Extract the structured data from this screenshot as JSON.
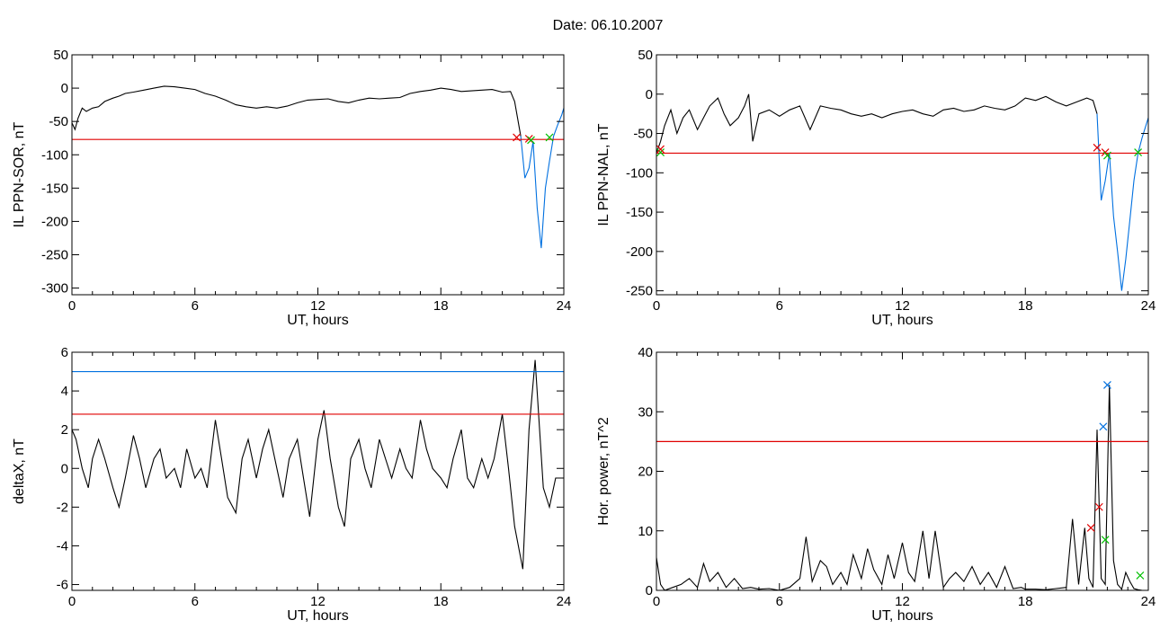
{
  "figure": {
    "title": "Date:  06.10.2007",
    "colors": {
      "line": "#000000",
      "red": "#e00000",
      "blue": "#0070e0",
      "green": "#00c000",
      "axis": "#000000"
    }
  },
  "chart_data": [
    {
      "type": "line",
      "xlabel": "UT, hours",
      "ylabel": "IL PPN-SOR, nT",
      "xlim": [
        0,
        24
      ],
      "ylim": [
        -310,
        50
      ],
      "xticks": [
        0,
        6,
        12,
        18,
        24
      ],
      "yticks": [
        50,
        0,
        -50,
        -100,
        -150,
        -200,
        -250,
        -300
      ],
      "threshold_lines": [
        {
          "color": "#e00000",
          "y": -77
        }
      ],
      "series": [
        {
          "color": "#000000",
          "x": [
            0,
            0.15,
            0.3,
            0.5,
            0.7,
            1.0,
            1.3,
            1.6,
            2.0,
            2.3,
            2.6,
            3.0,
            3.5,
            4.0,
            4.5,
            5.0,
            5.5,
            6.0,
            6.5,
            7.0,
            7.5,
            8.0,
            8.5,
            9.0,
            9.5,
            10.0,
            10.5,
            11.0,
            11.5,
            12.0,
            12.5,
            13.0,
            13.5,
            14.0,
            14.5,
            15.0,
            15.5,
            16.0,
            16.5,
            17.0,
            17.5,
            18.0,
            18.5,
            19.0,
            19.5,
            20.0,
            20.5,
            21.0,
            21.4,
            21.6,
            21.9
          ],
          "y": [
            -52,
            -62,
            -45,
            -30,
            -35,
            -30,
            -28,
            -20,
            -15,
            -12,
            -8,
            -6,
            -3,
            0,
            3,
            2,
            0,
            -2,
            -8,
            -12,
            -18,
            -25,
            -28,
            -30,
            -28,
            -30,
            -27,
            -22,
            -18,
            -17,
            -16,
            -20,
            -22,
            -18,
            -15,
            -16,
            -15,
            -14,
            -8,
            -5,
            -3,
            0,
            -2,
            -5,
            -4,
            -3,
            -2,
            -6,
            -5,
            -20,
            -72
          ]
        },
        {
          "color": "#0070e0",
          "x": [
            21.9,
            22.1,
            22.3,
            22.5,
            22.7,
            22.9,
            23.1,
            23.3,
            23.5,
            23.7,
            23.9,
            24.0
          ],
          "y": [
            -72,
            -135,
            -120,
            -80,
            -180,
            -240,
            -150,
            -110,
            -72,
            -55,
            -40,
            -30
          ]
        }
      ],
      "markers": [
        {
          "x": 21.7,
          "y": -74,
          "color": "#e00000"
        },
        {
          "x": 22.3,
          "y": -76,
          "color": "#e00000"
        },
        {
          "x": 22.4,
          "y": -78,
          "color": "#00c000"
        },
        {
          "x": 23.3,
          "y": -74,
          "color": "#00c000"
        }
      ]
    },
    {
      "type": "line",
      "xlabel": "UT, hours",
      "ylabel": "IL PPN-NAL, nT",
      "xlim": [
        0,
        24
      ],
      "ylim": [
        -255,
        50
      ],
      "xticks": [
        0,
        6,
        12,
        18,
        24
      ],
      "yticks": [
        50,
        0,
        -50,
        -100,
        -150,
        -200,
        -250
      ],
      "threshold_lines": [
        {
          "color": "#e00000",
          "y": -75
        }
      ],
      "series": [
        {
          "color": "#000000",
          "x": [
            0,
            0.2,
            0.4,
            0.7,
            1.0,
            1.3,
            1.6,
            2.0,
            2.3,
            2.6,
            3.0,
            3.3,
            3.6,
            4.0,
            4.3,
            4.5,
            4.7,
            5.0,
            5.5,
            6.0,
            6.5,
            7.0,
            7.5,
            8.0,
            8.5,
            9.0,
            9.5,
            10.0,
            10.5,
            11.0,
            11.5,
            12.0,
            12.5,
            13.0,
            13.5,
            14.0,
            14.5,
            15.0,
            15.5,
            16.0,
            16.5,
            17.0,
            17.5,
            18.0,
            18.5,
            19.0,
            19.5,
            20.0,
            20.5,
            21.0,
            21.3,
            21.5
          ],
          "y": [
            -75,
            -60,
            -40,
            -20,
            -50,
            -30,
            -20,
            -45,
            -30,
            -15,
            -5,
            -25,
            -40,
            -30,
            -15,
            0,
            -60,
            -25,
            -20,
            -28,
            -20,
            -15,
            -45,
            -15,
            -18,
            -20,
            -25,
            -28,
            -25,
            -30,
            -25,
            -22,
            -20,
            -25,
            -28,
            -20,
            -18,
            -22,
            -20,
            -15,
            -18,
            -20,
            -15,
            -5,
            -8,
            -3,
            -10,
            -15,
            -10,
            -5,
            -8,
            -25
          ]
        },
        {
          "color": "#0070e0",
          "x": [
            21.5,
            21.7,
            21.9,
            22.1,
            22.3,
            22.5,
            22.7,
            22.9,
            23.1,
            23.3,
            23.5,
            23.7,
            24.0
          ],
          "y": [
            -25,
            -135,
            -110,
            -75,
            -155,
            -200,
            -250,
            -210,
            -160,
            -110,
            -75,
            -55,
            -30
          ]
        }
      ],
      "markers": [
        {
          "x": 0.2,
          "y": -74,
          "color": "#00c000"
        },
        {
          "x": 0.2,
          "y": -70,
          "color": "#e00000"
        },
        {
          "x": 21.5,
          "y": -68,
          "color": "#e00000"
        },
        {
          "x": 21.9,
          "y": -74,
          "color": "#e00000"
        },
        {
          "x": 22.0,
          "y": -78,
          "color": "#00c000"
        },
        {
          "x": 23.5,
          "y": -74,
          "color": "#00c000"
        }
      ]
    },
    {
      "type": "line",
      "xlabel": "UT, hours",
      "ylabel": "deltaX, nT",
      "xlim": [
        0,
        24
      ],
      "ylim": [
        -6.3,
        6
      ],
      "xticks": [
        0,
        6,
        12,
        18,
        24
      ],
      "yticks": [
        6,
        4,
        2,
        0,
        -2,
        -4,
        -6
      ],
      "threshold_lines": [
        {
          "color": "#0070e0",
          "y": 5.0
        },
        {
          "color": "#e00000",
          "y": 2.8
        }
      ],
      "series": [
        {
          "color": "#000000",
          "x": [
            0,
            0.2,
            0.5,
            0.8,
            1.0,
            1.3,
            1.6,
            2.0,
            2.3,
            2.6,
            3.0,
            3.3,
            3.6,
            4.0,
            4.3,
            4.6,
            5.0,
            5.3,
            5.6,
            6.0,
            6.3,
            6.6,
            7.0,
            7.3,
            7.6,
            8.0,
            8.3,
            8.6,
            9.0,
            9.3,
            9.6,
            10.0,
            10.3,
            10.6,
            11.0,
            11.3,
            11.6,
            12.0,
            12.3,
            12.6,
            13.0,
            13.3,
            13.6,
            14.0,
            14.3,
            14.6,
            15.0,
            15.3,
            15.6,
            16.0,
            16.3,
            16.6,
            17.0,
            17.3,
            17.6,
            18.0,
            18.3,
            18.6,
            19.0,
            19.3,
            19.6,
            20.0,
            20.3,
            20.6,
            21.0,
            21.3,
            21.6,
            22.0,
            22.3,
            22.6,
            23.0,
            23.3,
            23.6,
            24.0
          ],
          "y": [
            2.0,
            1.5,
            0.0,
            -1.0,
            0.5,
            1.5,
            0.5,
            -1.0,
            -2.0,
            -0.5,
            1.7,
            0.5,
            -1.0,
            0.5,
            1.0,
            -0.5,
            0.0,
            -1.0,
            1.0,
            -0.5,
            0.0,
            -1.0,
            2.5,
            0.5,
            -1.5,
            -2.3,
            0.5,
            1.5,
            -0.5,
            1.0,
            2.0,
            0.0,
            -1.5,
            0.5,
            1.5,
            -0.5,
            -2.5,
            1.5,
            3.0,
            0.5,
            -2.0,
            -3.0,
            0.5,
            1.5,
            0.0,
            -1.0,
            1.5,
            0.5,
            -0.5,
            1.0,
            0.0,
            -0.5,
            2.5,
            1.0,
            0.0,
            -0.5,
            -1.0,
            0.5,
            2.0,
            -0.5,
            -1.0,
            0.5,
            -0.5,
            0.5,
            2.8,
            0.0,
            -3.0,
            -5.2,
            2.0,
            5.6,
            -1.0,
            -2.0,
            -0.5,
            -0.5
          ]
        }
      ],
      "markers": []
    },
    {
      "type": "line",
      "xlabel": "UT, hours",
      "ylabel": "Hor. power, nT^2",
      "xlim": [
        0,
        24
      ],
      "ylim": [
        0,
        40
      ],
      "xticks": [
        0,
        6,
        12,
        18,
        24
      ],
      "yticks": [
        40,
        30,
        20,
        10,
        0
      ],
      "threshold_lines": [
        {
          "color": "#e00000",
          "y": 25
        }
      ],
      "series": [
        {
          "color": "#000000",
          "x": [
            0,
            0.2,
            0.4,
            0.8,
            1.2,
            1.6,
            2.0,
            2.3,
            2.6,
            3.0,
            3.4,
            3.8,
            4.2,
            4.6,
            5.0,
            5.5,
            6.0,
            6.5,
            7.0,
            7.3,
            7.6,
            8.0,
            8.3,
            8.6,
            9.0,
            9.3,
            9.6,
            10.0,
            10.3,
            10.6,
            11.0,
            11.3,
            11.6,
            12.0,
            12.3,
            12.6,
            13.0,
            13.3,
            13.6,
            14.0,
            14.3,
            14.6,
            15.0,
            15.4,
            15.8,
            16.2,
            16.6,
            17.0,
            17.4,
            17.8,
            18.0,
            18.5,
            19.0,
            19.5,
            20.0,
            20.3,
            20.6,
            20.9,
            21.1,
            21.3,
            21.5,
            21.7,
            21.9,
            22.1,
            22.3,
            22.5,
            22.7,
            22.9,
            23.1,
            23.3,
            23.5,
            23.7,
            24.0
          ],
          "y": [
            5.5,
            1.0,
            0.0,
            0.5,
            1.0,
            2.0,
            0.5,
            4.5,
            1.5,
            3.0,
            0.5,
            2.0,
            0.3,
            0.5,
            0.2,
            0.3,
            0.0,
            0.5,
            2.0,
            9.0,
            1.5,
            5.0,
            4.0,
            1.0,
            3.0,
            1.0,
            6.0,
            2.0,
            7.0,
            3.5,
            1.0,
            6.0,
            2.0,
            8.0,
            3.0,
            1.5,
            10.0,
            2.0,
            10.0,
            0.5,
            2.0,
            3.0,
            1.5,
            4.0,
            1.0,
            3.0,
            0.5,
            4.0,
            0.3,
            0.5,
            0.2,
            0.2,
            0.1,
            0.3,
            0.5,
            12.0,
            1.0,
            10.5,
            2.0,
            0.5,
            27.0,
            2.0,
            1.0,
            34.5,
            5.0,
            1.0,
            0.2,
            3.0,
            1.5,
            0.3,
            0.1,
            0.0,
            0.0
          ]
        }
      ],
      "markers": [
        {
          "x": 21.2,
          "y": 10.5,
          "color": "#e00000"
        },
        {
          "x": 21.6,
          "y": 14.0,
          "color": "#e00000"
        },
        {
          "x": 21.8,
          "y": 27.5,
          "color": "#0070e0"
        },
        {
          "x": 22.0,
          "y": 34.5,
          "color": "#0070e0"
        },
        {
          "x": 21.9,
          "y": 8.5,
          "color": "#00c000"
        },
        {
          "x": 23.6,
          "y": 2.5,
          "color": "#00c000"
        }
      ]
    }
  ]
}
